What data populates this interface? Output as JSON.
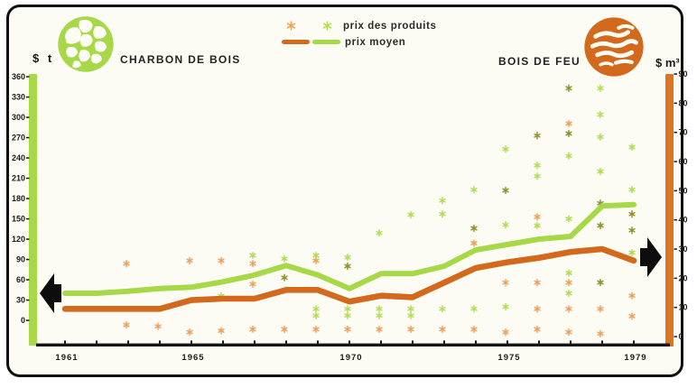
{
  "panel": {
    "left_section": {
      "title": "CHARBON DE BOIS",
      "unit": "$ t"
    },
    "right_section": {
      "title": "BOIS DE FEU",
      "unit": "$ m³"
    },
    "legend": {
      "points_label": "prix des produits",
      "mean_label": "prix moyen"
    }
  },
  "colors": {
    "green": "#a6d848",
    "green_point": "#b4dc56",
    "orange": "#d2691c",
    "orange_bar": "#dd7423",
    "orange_point": "#eda15c",
    "olive_point": "#8f932b",
    "ink": "#151515",
    "paper": "#fdfcf4"
  },
  "chart_data": {
    "type": "line+scatter",
    "title_left": "CHARBON DE BOIS",
    "title_right": "BOIS DE FEU",
    "legend": [
      "prix des produits",
      "prix moyen"
    ],
    "years": [
      1961,
      1962,
      1963,
      1964,
      1965,
      1966,
      1967,
      1968,
      1969,
      1970,
      1971,
      1972,
      1973,
      1974,
      1975,
      1976,
      1977,
      1978,
      1979
    ],
    "x_tick_labels": [
      "1961",
      "1965",
      "1970",
      "1975",
      "1979"
    ],
    "left_axis": {
      "label": "$ t",
      "applies_to": "charbon de bois",
      "min": 0,
      "max": 360,
      "step": 30
    },
    "right_axis": {
      "label": "$ m³",
      "applies_to": "bois de feu",
      "min": 0,
      "max": 90,
      "step": 10
    },
    "series": [
      {
        "name": "prix moyen — charbon de bois",
        "axis": "left",
        "color": "green",
        "values": [
          40,
          40,
          43,
          47,
          49,
          57,
          67,
          81,
          67,
          47,
          69,
          69,
          80,
          104,
          112,
          120,
          124,
          169,
          171
        ]
      },
      {
        "name": "prix moyen — bois de feu",
        "axis": "right",
        "color": "orange",
        "values": [
          9.5,
          9.5,
          9.5,
          9.5,
          12.5,
          13,
          13,
          16,
          16,
          12,
          14,
          13.5,
          18.5,
          23.5,
          25.5,
          27,
          29,
          30,
          26
        ]
      }
    ],
    "scatter_series": [
      {
        "name": "prix des produits — charbon de bois",
        "axis": "left",
        "color": "green",
        "points": [
          [
            1966,
            36
          ],
          [
            1967,
            96
          ],
          [
            1968,
            91
          ],
          [
            1968,
            63,
            "dark"
          ],
          [
            1969,
            96
          ],
          [
            1969,
            17
          ],
          [
            1969,
            7
          ],
          [
            1970,
            93
          ],
          [
            1970,
            80,
            "dark"
          ],
          [
            1970,
            17
          ],
          [
            1970,
            7
          ],
          [
            1971,
            129
          ],
          [
            1971,
            17
          ],
          [
            1971,
            7
          ],
          [
            1972,
            156
          ],
          [
            1972,
            17
          ],
          [
            1972,
            7
          ],
          [
            1973,
            177
          ],
          [
            1973,
            157
          ],
          [
            1973,
            17
          ],
          [
            1974,
            193
          ],
          [
            1974,
            136,
            "dark"
          ],
          [
            1974,
            17
          ],
          [
            1975,
            253
          ],
          [
            1975,
            192,
            "dark"
          ],
          [
            1975,
            141
          ],
          [
            1975,
            20
          ],
          [
            1976,
            273,
            "dark"
          ],
          [
            1976,
            229
          ],
          [
            1976,
            213
          ],
          [
            1976,
            140
          ],
          [
            1977,
            343,
            "dark"
          ],
          [
            1977,
            276,
            "dark"
          ],
          [
            1977,
            243
          ],
          [
            1977,
            150
          ],
          [
            1977,
            70
          ],
          [
            1977,
            40
          ],
          [
            1978,
            343
          ],
          [
            1978,
            304
          ],
          [
            1978,
            271
          ],
          [
            1978,
            220
          ],
          [
            1978,
            173,
            "dark"
          ],
          [
            1978,
            140,
            "dark"
          ],
          [
            1978,
            56,
            "dark"
          ],
          [
            1979,
            256
          ],
          [
            1979,
            193
          ],
          [
            1979,
            157,
            "dark"
          ],
          [
            1979,
            133,
            "dark"
          ],
          [
            1979,
            100
          ]
        ]
      },
      {
        "name": "prix des produits — bois de feu",
        "axis": "right",
        "color": "orange",
        "points": [
          [
            1963,
            25
          ],
          [
            1963,
            4
          ],
          [
            1964,
            3.5
          ],
          [
            1965,
            26
          ],
          [
            1965,
            1.5
          ],
          [
            1966,
            26
          ],
          [
            1966,
            2
          ],
          [
            1967,
            25
          ],
          [
            1967,
            18
          ],
          [
            1967,
            2.5
          ],
          [
            1968,
            2.5
          ],
          [
            1969,
            26
          ],
          [
            1969,
            2.5
          ],
          [
            1970,
            2.5
          ],
          [
            1971,
            2.5
          ],
          [
            1972,
            2.5
          ],
          [
            1973,
            2.5
          ],
          [
            1974,
            32
          ],
          [
            1974,
            2.5
          ],
          [
            1975,
            18.5
          ],
          [
            1975,
            1.5
          ],
          [
            1976,
            41
          ],
          [
            1976,
            18.5
          ],
          [
            1976,
            9.5
          ],
          [
            1976,
            2.5
          ],
          [
            1977,
            73
          ],
          [
            1977,
            18.5
          ],
          [
            1977,
            9.5
          ],
          [
            1977,
            1.5
          ],
          [
            1978,
            9.5
          ],
          [
            1978,
            1
          ],
          [
            1979,
            14
          ],
          [
            1979,
            7
          ]
        ]
      }
    ],
    "annotations": {
      "left_block_arrow": {
        "direction": "left",
        "axis": "left",
        "at_value": 40
      },
      "right_block_arrow": {
        "direction": "right",
        "axis": "right",
        "at_value": 27
      }
    },
    "grid": "off",
    "legend_position": "top-center"
  }
}
